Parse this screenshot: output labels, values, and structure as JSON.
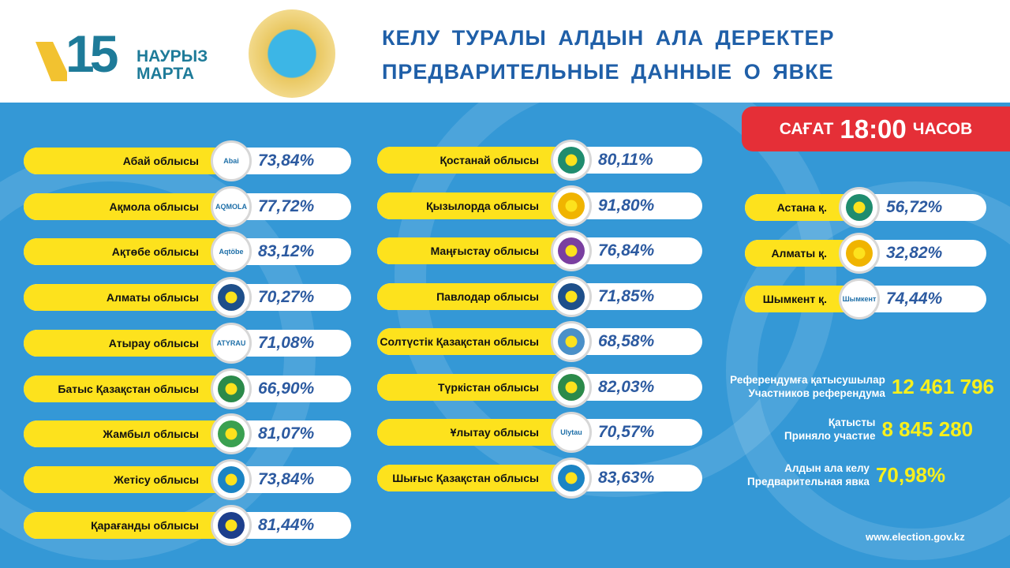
{
  "header": {
    "logo_number": "15",
    "logo_line1": "НАУРЫЗ",
    "logo_line2": "МАРТА",
    "title_kz": "КЕЛУ ТУРАЛЫ АЛДЫН АЛА ДЕРЕКТЕР",
    "title_ru": "ПРЕДВАРИТЕЛЬНЫЕ ДАННЫЕ О ЯВКЕ"
  },
  "badge": {
    "prefix": "САҒАТ",
    "time": "18:00",
    "suffix": "ЧАСОВ",
    "color": "#e52f37"
  },
  "colors": {
    "background": "#3498d6",
    "pill": "#fde21d",
    "value": "#2c5aa0",
    "highlight": "#f8f01c"
  },
  "left": [
    {
      "name": "Абай облысы",
      "value": "73,84%",
      "emblem": "Abai"
    },
    {
      "name": "Ақмола облысы",
      "value": "77,72%",
      "emblem": "AQMOLA"
    },
    {
      "name": "Ақтөбе облысы",
      "value": "83,12%",
      "emblem": "Aqtöbe"
    },
    {
      "name": "Алматы облысы",
      "value": "70,27%",
      "emblem": ""
    },
    {
      "name": "Атырау  облысы",
      "value": "71,08%",
      "emblem": "ATYRAU"
    },
    {
      "name": "Батыс Қазақстан облысы",
      "value": "66,90%",
      "emblem": ""
    },
    {
      "name": "Жамбыл облысы",
      "value": "81,07%",
      "emblem": ""
    },
    {
      "name": "Жетісу облысы",
      "value": "73,84%",
      "emblem": ""
    },
    {
      "name": "Қарағанды облысы",
      "value": "81,44%",
      "emblem": ""
    }
  ],
  "middle": [
    {
      "name": "Қостанай облысы",
      "value": "80,11%",
      "emblem": ""
    },
    {
      "name": "Қызылорда облысы",
      "value": "91,80%",
      "emblem": ""
    },
    {
      "name": "Маңғыстау облысы",
      "value": "76,84%",
      "emblem": ""
    },
    {
      "name": "Павлодар облысы",
      "value": "71,85%",
      "emblem": ""
    },
    {
      "name": "Солтүстік Қазақстан облысы",
      "value": "68,58%",
      "emblem": ""
    },
    {
      "name": "Түркістан облысы",
      "value": "82,03%",
      "emblem": ""
    },
    {
      "name": "Ұлытау облысы",
      "value": "70,57%",
      "emblem": "Ulytau"
    },
    {
      "name": "Шығыс Қазақстан облысы",
      "value": "83,63%",
      "emblem": ""
    }
  ],
  "cities": [
    {
      "name": "Астана  қ.",
      "value": "56,72%",
      "emblem": ""
    },
    {
      "name": "Алматы  қ.",
      "value": "32,82%",
      "emblem": ""
    },
    {
      "name": "Шымкент қ.",
      "value": "74,44%",
      "emblem": "Шымкент"
    }
  ],
  "stats": [
    {
      "label_kz": "Референдумға қатысушылар",
      "label_ru": "Участников референдума",
      "value": "12 461 796"
    },
    {
      "label_kz": "Қатысты",
      "label_ru": "Приняло участие",
      "value": "8 845 280"
    },
    {
      "label_kz": "Алдын ала келу",
      "label_ru": "Предварительная явка",
      "value": "70,98%"
    }
  ],
  "website": "www.election.gov.kz"
}
